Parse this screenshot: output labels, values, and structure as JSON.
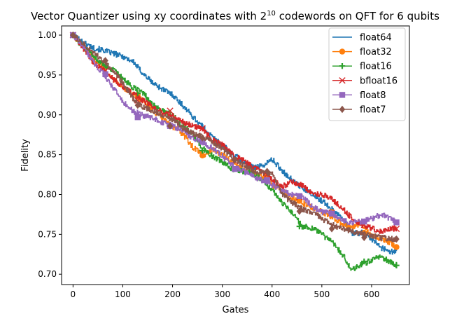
{
  "chart_data": {
    "type": "line",
    "title": "Vector Quantizer using xy coordinates with 2",
    "title_superscript": "10",
    "title_suffix": " codewords on QFT for 6 qubits",
    "xlabel": "Gates",
    "ylabel": "Fidelity",
    "xlim": [
      -23,
      676
    ],
    "ylim": [
      0.687,
      1.0115
    ],
    "xticks": [
      0,
      100,
      200,
      300,
      400,
      500,
      600
    ],
    "xtick_labels": [
      "0",
      "100",
      "200",
      "300",
      "400",
      "500",
      "600"
    ],
    "yticks": [
      0.7,
      0.75,
      0.8,
      0.85,
      0.9,
      0.95,
      1.0
    ],
    "ytick_labels": [
      "0.70",
      "0.75",
      "0.80",
      "0.85",
      "0.90",
      "0.95",
      "1.00"
    ],
    "grid": false,
    "legend_position": "top-right",
    "series": [
      {
        "name": "float64",
        "color": "#1f77b4",
        "marker": "none",
        "x": [
          0,
          20,
          40,
          60,
          80,
          100,
          120,
          140,
          160,
          180,
          200,
          220,
          240,
          260,
          280,
          300,
          320,
          340,
          360,
          380,
          400,
          420,
          440,
          460,
          480,
          500,
          520,
          540,
          560,
          580,
          600,
          620,
          640,
          650
        ],
        "y": [
          1.0,
          0.991,
          0.984,
          0.981,
          0.977,
          0.973,
          0.967,
          0.952,
          0.94,
          0.932,
          0.925,
          0.912,
          0.898,
          0.885,
          0.872,
          0.862,
          0.851,
          0.842,
          0.834,
          0.836,
          0.844,
          0.83,
          0.818,
          0.808,
          0.8,
          0.792,
          0.782,
          0.772,
          0.751,
          0.752,
          0.744,
          0.733,
          0.728,
          0.729
        ]
      },
      {
        "name": "float32",
        "color": "#ff7f0e",
        "marker": "circle",
        "x": [
          0,
          20,
          40,
          60,
          80,
          100,
          120,
          140,
          160,
          180,
          200,
          220,
          240,
          260,
          280,
          300,
          320,
          340,
          360,
          380,
          400,
          420,
          440,
          460,
          480,
          500,
          520,
          540,
          560,
          580,
          600,
          620,
          640,
          650
        ],
        "y": [
          1.0,
          0.985,
          0.972,
          0.96,
          0.946,
          0.934,
          0.925,
          0.918,
          0.905,
          0.895,
          0.885,
          0.876,
          0.86,
          0.849,
          0.856,
          0.85,
          0.84,
          0.832,
          0.828,
          0.822,
          0.812,
          0.805,
          0.795,
          0.79,
          0.784,
          0.778,
          0.772,
          0.763,
          0.76,
          0.762,
          0.748,
          0.745,
          0.738,
          0.734
        ],
        "marker_x": [
          0,
          130,
          260,
          390,
          455,
          520,
          585,
          650
        ],
        "marker_y": [
          1.0,
          0.925,
          0.849,
          0.823,
          0.792,
          0.778,
          0.752,
          0.734
        ]
      },
      {
        "name": "float16",
        "color": "#2ca02c",
        "marker": "plus",
        "x": [
          0,
          20,
          40,
          60,
          80,
          100,
          120,
          140,
          160,
          180,
          200,
          220,
          240,
          260,
          280,
          300,
          320,
          340,
          360,
          380,
          400,
          420,
          440,
          460,
          480,
          500,
          520,
          540,
          560,
          580,
          600,
          620,
          640,
          650
        ],
        "y": [
          1.0,
          0.984,
          0.974,
          0.963,
          0.956,
          0.945,
          0.934,
          0.928,
          0.912,
          0.905,
          0.899,
          0.886,
          0.876,
          0.858,
          0.848,
          0.84,
          0.832,
          0.829,
          0.828,
          0.818,
          0.806,
          0.789,
          0.778,
          0.76,
          0.758,
          0.75,
          0.74,
          0.726,
          0.705,
          0.712,
          0.718,
          0.722,
          0.714,
          0.711
        ],
        "marker_x": [
          0,
          65,
          130,
          260,
          455,
          585,
          650
        ],
        "marker_y": [
          1.0,
          0.962,
          0.927,
          0.855,
          0.76,
          0.716,
          0.711
        ]
      },
      {
        "name": "bfloat16",
        "color": "#d62728",
        "marker": "x",
        "x": [
          0,
          20,
          40,
          60,
          80,
          100,
          120,
          140,
          160,
          180,
          200,
          220,
          240,
          260,
          280,
          300,
          320,
          340,
          360,
          380,
          400,
          420,
          440,
          460,
          480,
          500,
          520,
          540,
          560,
          580,
          600,
          620,
          640,
          650
        ],
        "y": [
          1.0,
          0.984,
          0.966,
          0.957,
          0.945,
          0.935,
          0.927,
          0.918,
          0.91,
          0.903,
          0.898,
          0.891,
          0.887,
          0.882,
          0.868,
          0.862,
          0.85,
          0.843,
          0.835,
          0.829,
          0.818,
          0.81,
          0.816,
          0.812,
          0.802,
          0.8,
          0.795,
          0.783,
          0.77,
          0.762,
          0.758,
          0.752,
          0.758,
          0.757
        ],
        "marker_x": [
          0,
          65,
          130,
          195,
          260,
          325,
          390,
          455,
          520,
          585,
          650
        ],
        "marker_y": [
          1.0,
          0.955,
          0.918,
          0.905,
          0.883,
          0.842,
          0.825,
          0.797,
          0.777,
          0.762,
          0.757
        ]
      },
      {
        "name": "float8",
        "color": "#9467bd",
        "marker": "square",
        "x": [
          0,
          20,
          40,
          60,
          80,
          100,
          120,
          140,
          160,
          180,
          200,
          220,
          240,
          260,
          280,
          300,
          320,
          340,
          360,
          380,
          400,
          420,
          440,
          460,
          480,
          500,
          520,
          540,
          560,
          580,
          600,
          620,
          640,
          650
        ],
        "y": [
          1.0,
          0.986,
          0.966,
          0.952,
          0.934,
          0.916,
          0.905,
          0.899,
          0.896,
          0.89,
          0.886,
          0.88,
          0.871,
          0.866,
          0.858,
          0.848,
          0.836,
          0.83,
          0.823,
          0.818,
          0.812,
          0.804,
          0.8,
          0.798,
          0.785,
          0.778,
          0.776,
          0.768,
          0.765,
          0.766,
          0.77,
          0.775,
          0.769,
          0.765
        ],
        "marker_x": [
          0,
          65,
          130,
          195,
          260,
          325,
          390,
          455,
          520,
          585,
          650
        ],
        "marker_y": [
          1.0,
          0.951,
          0.897,
          0.886,
          0.866,
          0.832,
          0.818,
          0.798,
          0.776,
          0.766,
          0.765
        ]
      },
      {
        "name": "float7",
        "color": "#8c564b",
        "marker": "diamond",
        "x": [
          0,
          20,
          40,
          60,
          80,
          100,
          120,
          140,
          160,
          180,
          200,
          220,
          240,
          260,
          280,
          300,
          320,
          340,
          360,
          380,
          400,
          420,
          440,
          460,
          480,
          500,
          520,
          540,
          560,
          580,
          600,
          620,
          640,
          650
        ],
        "y": [
          1.0,
          0.99,
          0.978,
          0.968,
          0.955,
          0.94,
          0.92,
          0.91,
          0.905,
          0.9,
          0.894,
          0.884,
          0.877,
          0.872,
          0.866,
          0.858,
          0.846,
          0.838,
          0.83,
          0.828,
          0.826,
          0.8,
          0.79,
          0.782,
          0.777,
          0.77,
          0.762,
          0.758,
          0.754,
          0.751,
          0.748,
          0.746,
          0.744,
          0.744
        ],
        "marker_x": [
          0,
          65,
          130,
          195,
          260,
          325,
          390,
          455,
          520,
          585,
          650
        ],
        "marker_y": [
          1.0,
          0.968,
          0.912,
          0.886,
          0.871,
          0.843,
          0.829,
          0.779,
          0.757,
          0.746,
          0.744
        ]
      }
    ]
  }
}
